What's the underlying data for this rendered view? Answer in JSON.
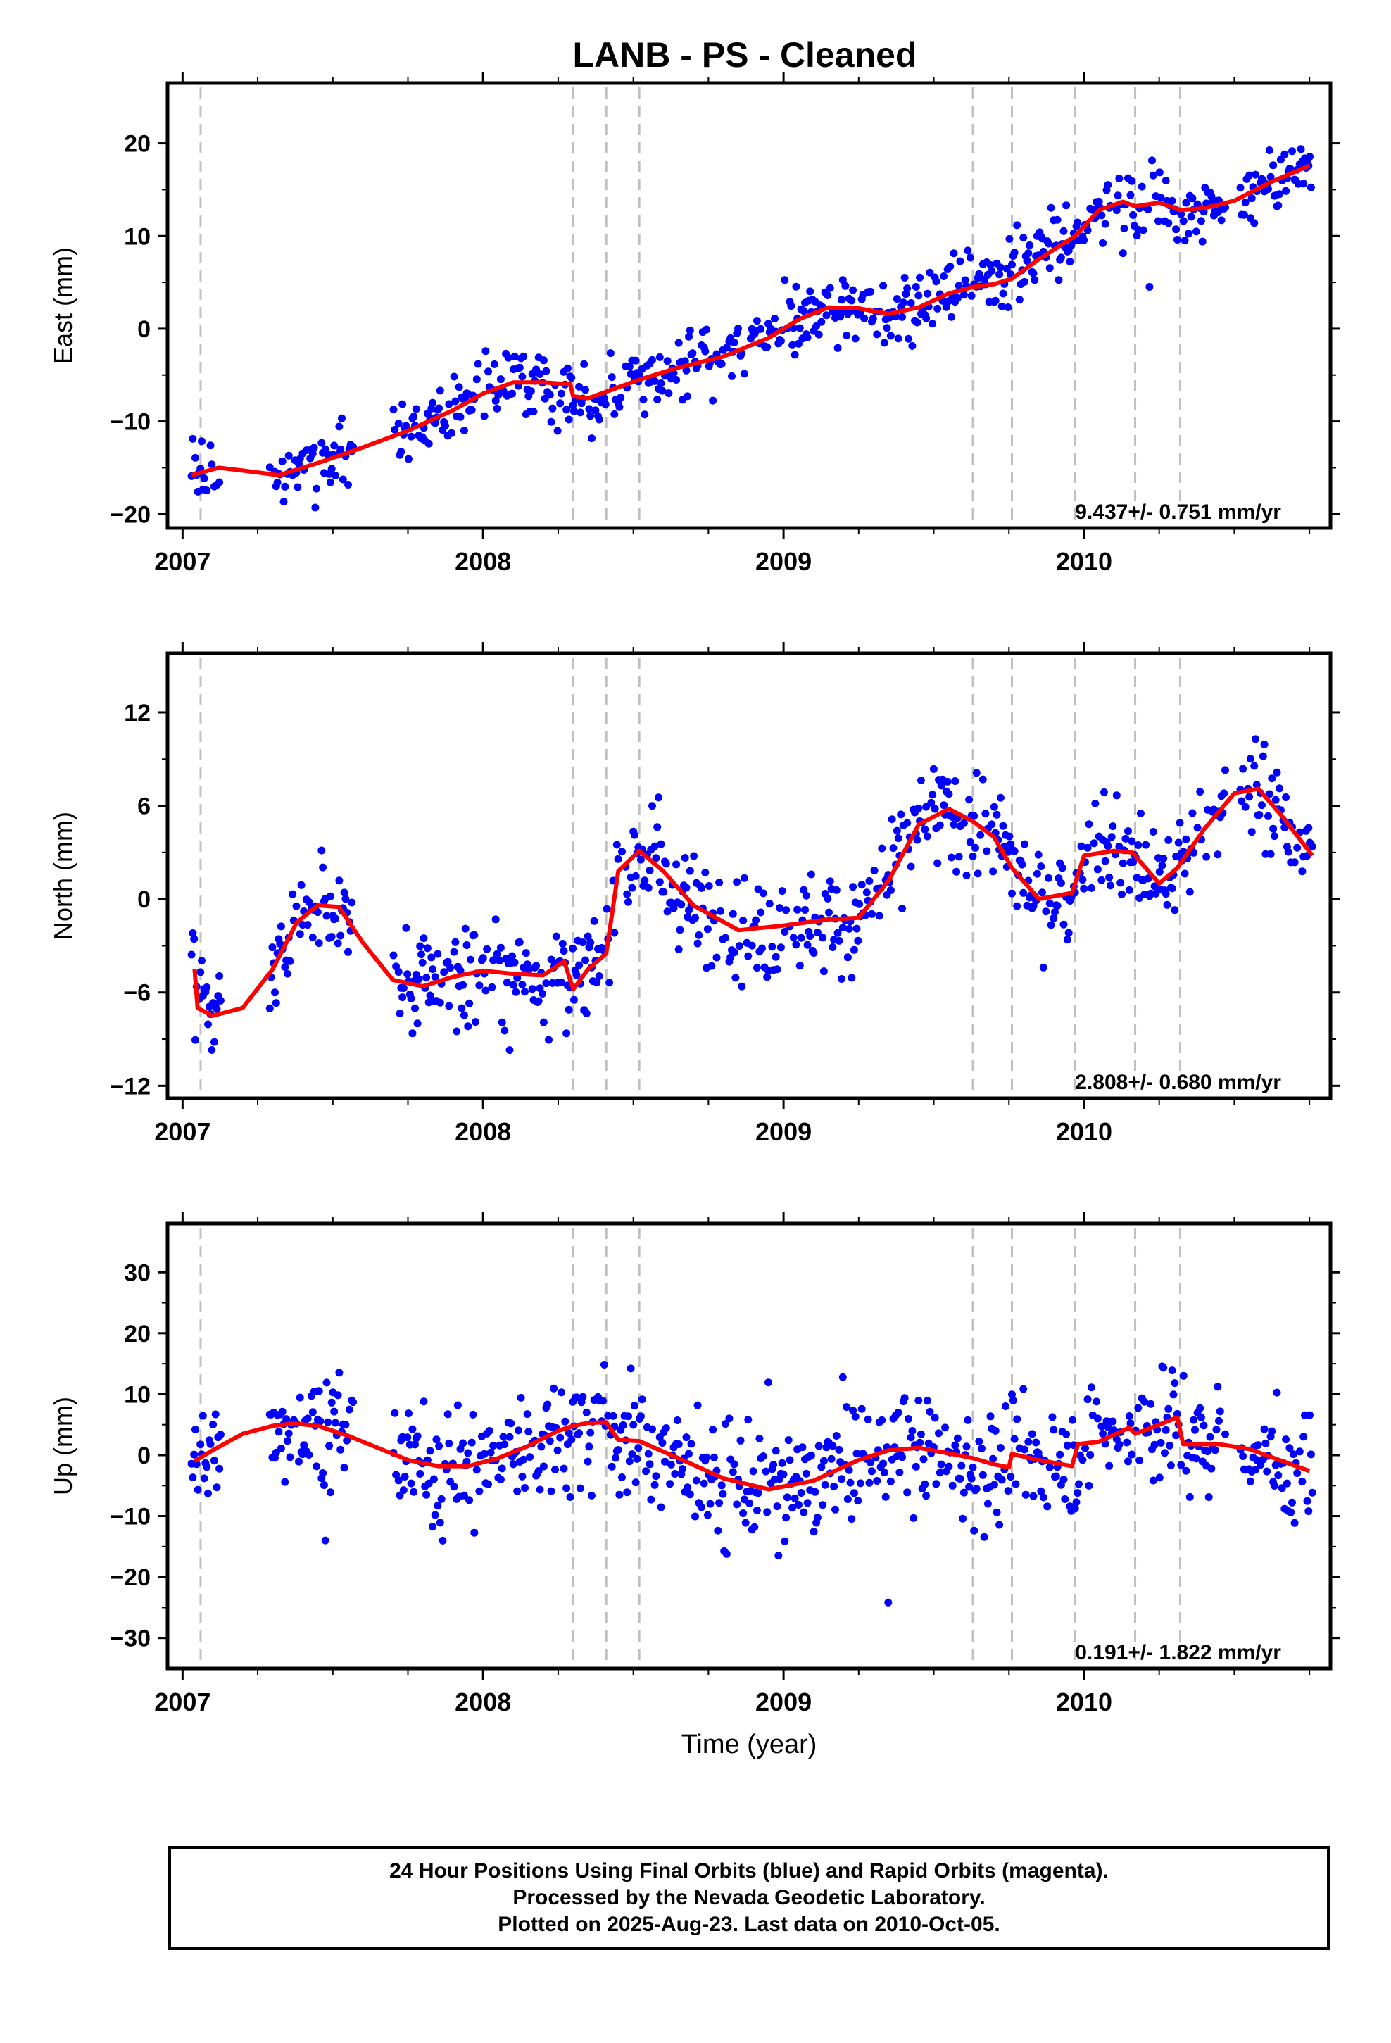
{
  "title": "LANB  - PS - Cleaned",
  "xlabel": "Time (year)",
  "footer": {
    "line1": "24 Hour Positions Using Final Orbits (blue) and Rapid Orbits (magenta).",
    "line2": "Processed by the Nevada Geodetic Laboratory.",
    "line3": "Plotted on 2025-Aug-23. Last data on 2010-Oct-05."
  },
  "colors": {
    "points": "#0000ff",
    "trend": "#ff0000",
    "breaks": "#c0c0c0",
    "frame": "#000000"
  },
  "chart_data": [
    {
      "type": "scatter",
      "ylabel": "East (mm)",
      "rate_label": "9.437+/- 0.751 mm/yr",
      "xlim": [
        2006.95,
        2010.82
      ],
      "ylim": [
        -21.5,
        26.5
      ],
      "xticks": [
        2007,
        2008,
        2009,
        2010
      ],
      "yticks": [
        -20,
        -10,
        0,
        10,
        20
      ],
      "step_epochs": [
        2007.06,
        2008.3,
        2008.41,
        2008.52,
        2009.63,
        2009.76,
        2009.97,
        2010.17,
        2010.32
      ],
      "model": {
        "x": [
          2007.03,
          2007.12,
          2007.2,
          2007.32,
          2007.45,
          2007.6,
          2007.75,
          2007.9,
          2008.0,
          2008.1,
          2008.2,
          2008.29,
          2008.3,
          2008.35,
          2008.41,
          2008.52,
          2008.65,
          2008.8,
          2008.95,
          2009.05,
          2009.15,
          2009.25,
          2009.35,
          2009.45,
          2009.55,
          2009.63,
          2009.7,
          2009.76,
          2009.85,
          2009.97,
          2010.05,
          2010.13,
          2010.17,
          2010.25,
          2010.32,
          2010.4,
          2010.5,
          2010.62,
          2010.75
        ],
        "y": [
          -15.8,
          -15.0,
          -15.3,
          -15.8,
          -14.5,
          -12.8,
          -11.0,
          -8.8,
          -7.0,
          -5.8,
          -5.8,
          -6.0,
          -7.3,
          -7.5,
          -6.8,
          -5.5,
          -4.2,
          -3.0,
          -1.0,
          1.0,
          2.3,
          2.2,
          1.6,
          2.3,
          3.8,
          4.5,
          4.8,
          5.4,
          7.5,
          10.0,
          12.8,
          13.7,
          13.2,
          13.6,
          12.8,
          13.0,
          13.8,
          15.8,
          17.6
        ]
      }
    },
    {
      "type": "scatter",
      "ylabel": "North (mm)",
      "rate_label": "2.808+/- 0.680 mm/yr",
      "xlim": [
        2006.95,
        2010.82
      ],
      "ylim": [
        -12.8,
        15.8
      ],
      "xticks": [
        2007,
        2008,
        2009,
        2010
      ],
      "yticks": [
        -12,
        -6,
        0,
        6,
        12
      ],
      "step_epochs": [
        2007.06,
        2008.3,
        2008.41,
        2008.52,
        2009.63,
        2009.76,
        2009.97,
        2010.17,
        2010.32
      ],
      "model": {
        "x": [
          2007.04,
          2007.05,
          2007.1,
          2007.2,
          2007.3,
          2007.38,
          2007.45,
          2007.52,
          2007.6,
          2007.7,
          2007.8,
          2007.9,
          2008.0,
          2008.1,
          2008.2,
          2008.27,
          2008.3,
          2008.35,
          2008.41,
          2008.45,
          2008.52,
          2008.6,
          2008.7,
          2008.85,
          2009.0,
          2009.15,
          2009.25,
          2009.35,
          2009.45,
          2009.55,
          2009.63,
          2009.7,
          2009.76,
          2009.85,
          2009.96,
          2010.0,
          2010.1,
          2010.16,
          2010.25,
          2010.31,
          2010.4,
          2010.5,
          2010.58,
          2010.66,
          2010.76
        ],
        "y": [
          -4.5,
          -7.0,
          -7.5,
          -7.0,
          -4.5,
          -1.5,
          -0.4,
          -0.5,
          -2.8,
          -5.2,
          -5.6,
          -5.0,
          -4.6,
          -4.8,
          -4.9,
          -4.0,
          -5.8,
          -4.5,
          -3.5,
          1.8,
          3.1,
          1.8,
          -0.4,
          -2.0,
          -1.7,
          -1.3,
          -1.2,
          1.2,
          4.8,
          5.8,
          5.0,
          4.0,
          2.0,
          0.0,
          0.4,
          2.8,
          3.1,
          3.0,
          1.0,
          2.0,
          4.5,
          6.8,
          7.1,
          5.3,
          2.8
        ]
      }
    },
    {
      "type": "scatter",
      "ylabel": "Up (mm)",
      "rate_label": "0.191+/- 1.822 mm/yr",
      "xlim": [
        2006.95,
        2010.82
      ],
      "ylim": [
        -35,
        38
      ],
      "xticks": [
        2007,
        2008,
        2009,
        2010
      ],
      "yticks": [
        -30,
        -20,
        -10,
        0,
        10,
        20,
        30
      ],
      "step_epochs": [
        2007.06,
        2008.3,
        2008.41,
        2008.52,
        2009.63,
        2009.76,
        2009.97,
        2010.17,
        2010.32
      ],
      "model": {
        "x": [
          2007.04,
          2007.1,
          2007.2,
          2007.3,
          2007.37,
          2007.45,
          2007.55,
          2007.65,
          2007.75,
          2007.85,
          2007.95,
          2008.05,
          2008.15,
          2008.25,
          2008.3,
          2008.35,
          2008.41,
          2008.45,
          2008.52,
          2008.65,
          2008.8,
          2008.95,
          2009.1,
          2009.25,
          2009.35,
          2009.45,
          2009.55,
          2009.63,
          2009.7,
          2009.75,
          2009.76,
          2009.85,
          2009.96,
          2009.98,
          2010.05,
          2010.15,
          2010.17,
          2010.25,
          2010.31,
          2010.33,
          2010.45,
          2010.55,
          2010.65,
          2010.75
        ],
        "y": [
          -1.0,
          0.8,
          3.5,
          4.8,
          5.2,
          4.8,
          3.2,
          1.2,
          -0.8,
          -1.8,
          -1.8,
          -0.5,
          1.5,
          4.0,
          4.8,
          5.3,
          5.4,
          2.5,
          2.3,
          -0.5,
          -3.8,
          -5.6,
          -4.2,
          -0.8,
          0.8,
          1.2,
          0.3,
          -0.5,
          -1.5,
          -2.0,
          0.2,
          -0.8,
          -1.8,
          1.8,
          2.2,
          4.5,
          3.5,
          5.0,
          6.2,
          1.8,
          1.8,
          1.0,
          -0.8,
          -2.6
        ]
      }
    }
  ]
}
